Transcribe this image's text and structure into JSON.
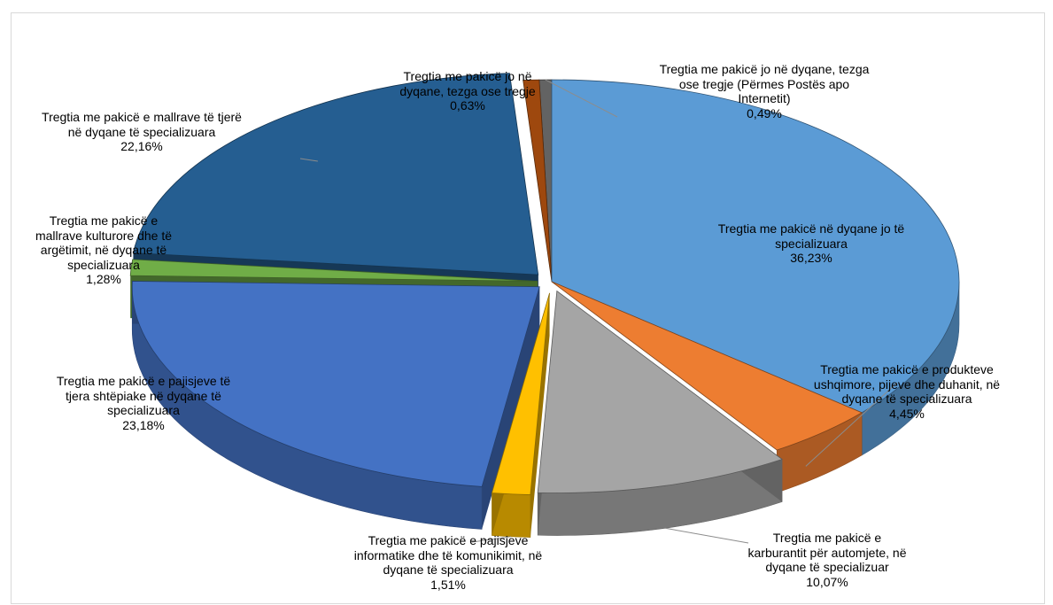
{
  "chart_data": {
    "type": "pie",
    "style": "3d-exploded",
    "title": "",
    "slices": [
      {
        "label": "Tregtia me pakicë në dyqane jo të specializuara",
        "value": 36.23,
        "display": "36,23%",
        "color": "#5B9BD5"
      },
      {
        "label": "Tregtia me pakicë e produkteve ushqimore, pijeve dhe duhanit, në dyqane të specializuara",
        "value": 4.45,
        "display": "4,45%",
        "color": "#ED7D31"
      },
      {
        "label": "Tregtia me pakicë e karburantit për automjete, në dyqane të specializuar",
        "value": 10.07,
        "display": "10,07%",
        "color": "#A5A5A5"
      },
      {
        "label": "Tregtia me pakicë e pajisjeve informatike dhe të komunikimit,  në dyqane të specializuara",
        "value": 1.51,
        "display": "1,51%",
        "color": "#FFC000"
      },
      {
        "label": "Tregtia me pakicë e pajisjeve të tjera shtëpiake në dyqane të specializuara",
        "value": 23.18,
        "display": "23,18%",
        "color": "#4472C4"
      },
      {
        "label": "Tregtia me pakicë e mallrave kulturore dhe të argëtimit, në dyqane të specializuara",
        "value": 1.28,
        "display": "1,28%",
        "color": "#70AD47"
      },
      {
        "label": "Tregtia me pakicë e mallrave të tjerë në dyqane të specializuara",
        "value": 22.16,
        "display": "22,16%",
        "color": "#255E91"
      },
      {
        "label": "Tregtia me pakicë jo në dyqane, tezga ose tregje",
        "value": 0.63,
        "display": "0,63%",
        "color": "#9E480E"
      },
      {
        "label": "Tregtia me pakicë jo në dyqane, tezga ose tregje (Përmes Postës apo Internetit)",
        "value": 0.49,
        "display": "0,49%",
        "color": "#636363"
      }
    ]
  },
  "labels": [
    {
      "name": "Tregtia me pakicë në dyqane jo të\nspecializuara",
      "value": "36,23%"
    },
    {
      "name": "Tregtia me pakicë e produkteve\nushqimore, pijeve dhe duhanit, në\ndyqane të specializuara",
      "value": "4,45%"
    },
    {
      "name": "Tregtia me pakicë e\nkarburantit për automjete, në\ndyqane të specializuar",
      "value": "10,07%"
    },
    {
      "name": "Tregtia me pakicë e pajisjeve\ninformatike dhe të komunikimit,  në\ndyqane të specializuara",
      "value": "1,51%"
    },
    {
      "name": "Tregtia me pakicë e pajisjeve të\ntjera shtëpiake në dyqane të\nspecializuara",
      "value": "23,18%"
    },
    {
      "name": "Tregtia me pakicë e\nmallrave kulturore dhe të\nargëtimit, në dyqane të\nspecializuara",
      "value": "1,28%"
    },
    {
      "name": "Tregtia me pakicë e mallrave të tjerë\nnë dyqane të specializuara",
      "value": "22,16%"
    },
    {
      "name": "Tregtia me pakicë jo në\ndyqane, tezga ose tregje",
      "value": "0,63%"
    },
    {
      "name": "Tregtia me pakicë jo në dyqane, tezga\nose tregje (Përmes Postës apo\nInternetit)",
      "value": "0,49%"
    }
  ]
}
